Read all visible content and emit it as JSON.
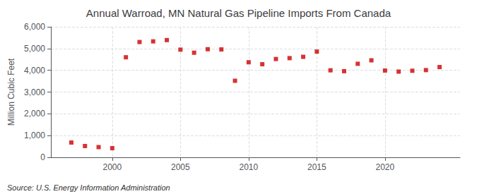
{
  "chart_data": {
    "type": "scatter",
    "title": "Annual Warroad, MN Natural Gas Pipeline Imports From Canada",
    "ylabel": "Million Cubic Feet",
    "annotations": [
      "Source: U.S. Energy Information Administration"
    ],
    "x": [
      1997,
      1998,
      1999,
      2000,
      2001,
      2002,
      2003,
      2004,
      2005,
      2006,
      2007,
      2008,
      2009,
      2010,
      2011,
      2012,
      2013,
      2014,
      2015,
      2016,
      2017,
      2018,
      2019,
      2020,
      2021,
      2022,
      2023,
      2024
    ],
    "values": [
      680,
      520,
      470,
      420,
      4600,
      5300,
      5330,
      5390,
      4950,
      4810,
      4970,
      4960,
      3520,
      4370,
      4280,
      4520,
      4560,
      4620,
      4860,
      4000,
      3960,
      4300,
      4460,
      3990,
      3940,
      3980,
      4010,
      4150
    ],
    "color": "#cc0000",
    "marker": "square",
    "xlim": [
      1995.5,
      2025.5
    ],
    "xticks": [
      2000,
      2005,
      2010,
      2015,
      2020
    ],
    "ylim": [
      0,
      6000
    ],
    "yticks": [
      0,
      {
        "value": 1000,
        "label": "1,000"
      },
      {
        "value": 2000,
        "label": "2,000"
      },
      {
        "value": 3000,
        "label": "3,000"
      },
      {
        "value": 4000,
        "label": "4,000"
      },
      {
        "value": 5000,
        "label": "5,000"
      },
      {
        "value": 6000,
        "label": "6,000"
      }
    ],
    "grid": true
  }
}
